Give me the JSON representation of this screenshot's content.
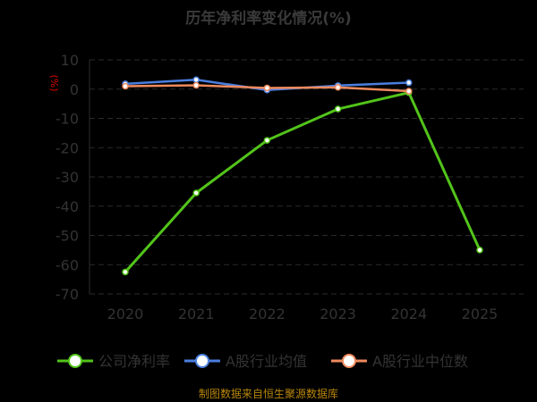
{
  "chart_data": {
    "type": "line",
    "title": "历年净利率变化情况(%)",
    "ylabel": "(%)",
    "xlabel": "",
    "categories": [
      "2020",
      "2021",
      "2022",
      "2023",
      "2024",
      "2025"
    ],
    "ylim": [
      -70,
      10
    ],
    "yticks": [
      10,
      0,
      -10,
      -20,
      -30,
      -40,
      -50,
      -60,
      -70
    ],
    "grid": true,
    "legend_position": "bottom",
    "series": [
      {
        "name": "公司净利率",
        "color": "#52c41a",
        "values": [
          -62.5,
          -35.5,
          -17.5,
          -6.8,
          -1.2,
          -55.0
        ]
      },
      {
        "name": "A股行业均值",
        "color": "#4a7fe0",
        "values": [
          1.8,
          3.2,
          -0.3,
          1.2,
          2.2,
          null
        ]
      },
      {
        "name": "A股行业中位数",
        "color": "#f08a5d",
        "values": [
          1.0,
          1.3,
          0.4,
          0.6,
          -0.7,
          null
        ]
      }
    ]
  },
  "footer": {
    "source": "制图数据来自恒生聚源数据库"
  }
}
